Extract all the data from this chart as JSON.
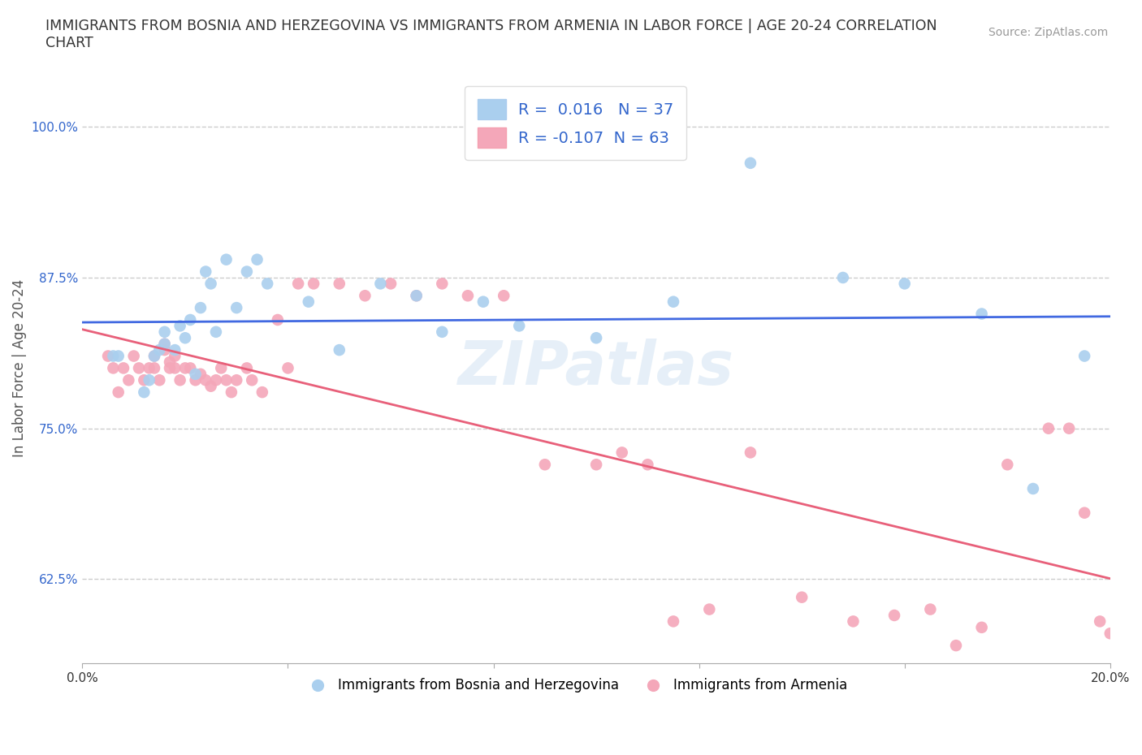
{
  "title": "IMMIGRANTS FROM BOSNIA AND HERZEGOVINA VS IMMIGRANTS FROM ARMENIA IN LABOR FORCE | AGE 20-24 CORRELATION\nCHART",
  "source": "Source: ZipAtlas.com",
  "ylabel": "In Labor Force | Age 20-24",
  "xlim": [
    0.0,
    0.2
  ],
  "ylim": [
    0.555,
    1.045
  ],
  "yticks": [
    0.625,
    0.75,
    0.875,
    1.0
  ],
  "ytick_labels": [
    "62.5%",
    "75.0%",
    "87.5%",
    "100.0%"
  ],
  "xticks": [
    0.0,
    0.04,
    0.08,
    0.12,
    0.16,
    0.2
  ],
  "xtick_labels": [
    "0.0%",
    "",
    "",
    "",
    "",
    "20.0%"
  ],
  "bosnia_color": "#aacfee",
  "armenia_color": "#f4a7b9",
  "bosnia_line_color": "#4169e1",
  "armenia_line_color": "#e8607a",
  "R_bosnia": 0.016,
  "N_bosnia": 37,
  "R_armenia": -0.107,
  "N_armenia": 63,
  "legend_label_bosnia": "Immigrants from Bosnia and Herzegovina",
  "legend_label_armenia": "Immigrants from Armenia",
  "watermark": "ZIPatlas",
  "background_color": "#ffffff",
  "bosnia_x": [
    0.006,
    0.007,
    0.012,
    0.013,
    0.014,
    0.015,
    0.016,
    0.016,
    0.018,
    0.019,
    0.02,
    0.021,
    0.022,
    0.023,
    0.024,
    0.025,
    0.026,
    0.028,
    0.03,
    0.032,
    0.034,
    0.036,
    0.044,
    0.05,
    0.058,
    0.065,
    0.07,
    0.078,
    0.085,
    0.1,
    0.115,
    0.13,
    0.148,
    0.16,
    0.175,
    0.185,
    0.195
  ],
  "bosnia_y": [
    0.81,
    0.81,
    0.78,
    0.79,
    0.81,
    0.815,
    0.82,
    0.83,
    0.815,
    0.835,
    0.825,
    0.84,
    0.795,
    0.85,
    0.88,
    0.87,
    0.83,
    0.89,
    0.85,
    0.88,
    0.89,
    0.87,
    0.855,
    0.815,
    0.87,
    0.86,
    0.83,
    0.855,
    0.835,
    0.825,
    0.855,
    0.97,
    0.875,
    0.87,
    0.845,
    0.7,
    0.81
  ],
  "armenia_x": [
    0.005,
    0.006,
    0.007,
    0.008,
    0.009,
    0.01,
    0.011,
    0.012,
    0.013,
    0.014,
    0.014,
    0.015,
    0.016,
    0.016,
    0.017,
    0.017,
    0.018,
    0.018,
    0.019,
    0.02,
    0.021,
    0.022,
    0.023,
    0.024,
    0.025,
    0.026,
    0.027,
    0.028,
    0.029,
    0.03,
    0.032,
    0.033,
    0.035,
    0.038,
    0.04,
    0.042,
    0.045,
    0.05,
    0.055,
    0.06,
    0.065,
    0.07,
    0.075,
    0.082,
    0.09,
    0.1,
    0.105,
    0.11,
    0.115,
    0.122,
    0.13,
    0.14,
    0.15,
    0.158,
    0.165,
    0.17,
    0.175,
    0.18,
    0.188,
    0.192,
    0.195,
    0.198,
    0.2
  ],
  "armenia_y": [
    0.81,
    0.8,
    0.78,
    0.8,
    0.79,
    0.81,
    0.8,
    0.79,
    0.8,
    0.81,
    0.8,
    0.79,
    0.815,
    0.82,
    0.805,
    0.8,
    0.81,
    0.8,
    0.79,
    0.8,
    0.8,
    0.79,
    0.795,
    0.79,
    0.785,
    0.79,
    0.8,
    0.79,
    0.78,
    0.79,
    0.8,
    0.79,
    0.78,
    0.84,
    0.8,
    0.87,
    0.87,
    0.87,
    0.86,
    0.87,
    0.86,
    0.87,
    0.86,
    0.86,
    0.72,
    0.72,
    0.73,
    0.72,
    0.59,
    0.6,
    0.73,
    0.61,
    0.59,
    0.595,
    0.6,
    0.57,
    0.585,
    0.72,
    0.75,
    0.75,
    0.68,
    0.59,
    0.58
  ]
}
